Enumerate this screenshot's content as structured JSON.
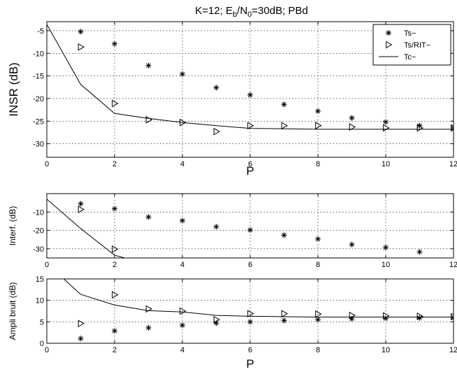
{
  "figure": {
    "title_parts": {
      "prefix": "K=12;  E",
      "sub1": "b",
      "mid": "/N",
      "sub2": "0",
      "suffix": "=30dB;  PBd"
    }
  },
  "chart_data": [
    {
      "type": "scatter",
      "name": "top",
      "title": "K=12;  Eb/N0=30dB;  PBd",
      "xlabel": "P",
      "ylabel": "INSR (dB)",
      "xlim": [
        0,
        12
      ],
      "ylim": [
        -33,
        -3
      ],
      "xticks": [
        0,
        2,
        4,
        6,
        8,
        10,
        12
      ],
      "yticks": [
        -5,
        -10,
        -15,
        -20,
        -25,
        -30
      ],
      "grid": true,
      "legend": {
        "placement": "top-right",
        "entries": [
          "Ts−",
          "Ts/RIT−",
          "Tc−"
        ]
      },
      "series": [
        {
          "name": "Ts−",
          "marker": "star",
          "x": [
            1,
            2,
            3,
            4,
            5,
            6,
            7,
            8,
            9,
            10,
            11,
            12
          ],
          "y": [
            -5.2,
            -7.9,
            -12.7,
            -14.6,
            -17.6,
            -19.2,
            -21.3,
            -22.8,
            -24.3,
            -25.2,
            -26.0,
            -26.5
          ]
        },
        {
          "name": "Ts/RIT−",
          "marker": "triangle-right",
          "x": [
            1,
            2,
            3,
            4,
            5,
            6,
            7,
            8,
            9,
            10,
            11,
            12
          ],
          "y": [
            -8.6,
            -21.1,
            -24.7,
            -25.3,
            -27.3,
            -26.0,
            -26.0,
            -26.0,
            -26.3,
            -26.5,
            -26.5,
            -26.5
          ]
        },
        {
          "name": "Tc−",
          "marker": "line",
          "x": [
            0,
            1,
            2,
            3,
            4,
            5,
            6,
            7,
            8,
            9,
            10,
            11,
            12
          ],
          "y": [
            -3.6,
            -16.9,
            -23.3,
            -24.4,
            -25.3,
            -26.0,
            -26.6,
            -26.7,
            -26.8,
            -26.8,
            -26.8,
            -26.8,
            -26.8
          ]
        }
      ]
    },
    {
      "type": "scatter",
      "name": "middle",
      "xlabel": "",
      "ylabel": "Interf. (dB)",
      "xlim": [
        0,
        12
      ],
      "ylim": [
        -35,
        0
      ],
      "xticks": [
        0,
        2,
        4,
        6,
        8,
        10,
        12
      ],
      "yticks": [
        -10,
        -20,
        -30
      ],
      "grid": true,
      "series": [
        {
          "name": "Ts−",
          "marker": "star",
          "x": [
            1,
            2,
            3,
            4,
            5,
            6,
            7,
            8,
            9,
            10,
            11
          ],
          "y": [
            -5.5,
            -8.2,
            -12.7,
            -14.7,
            -18.0,
            -19.8,
            -22.6,
            -24.7,
            -27.7,
            -29.3,
            -31.7
          ]
        },
        {
          "name": "Ts/RIT−",
          "marker": "triangle-right",
          "x": [
            1,
            2
          ],
          "y": [
            -8.6,
            -30.2
          ]
        },
        {
          "name": "Tc−",
          "marker": "line",
          "x": [
            0,
            1,
            2,
            2.3
          ],
          "y": [
            -3.0,
            -19.0,
            -33.5,
            -35.0
          ]
        }
      ]
    },
    {
      "type": "scatter",
      "name": "bottom",
      "xlabel": "P",
      "ylabel": "Ampli bruit (dB)",
      "xlim": [
        0,
        12
      ],
      "ylim": [
        0,
        15
      ],
      "xticks": [
        0,
        2,
        4,
        6,
        8,
        10,
        12
      ],
      "yticks": [
        0,
        5,
        10,
        15
      ],
      "grid": true,
      "series": [
        {
          "name": "Ts−",
          "marker": "star",
          "x": [
            1,
            2,
            3,
            4,
            5,
            6,
            7,
            8,
            9,
            10,
            11,
            12
          ],
          "y": [
            1.1,
            2.9,
            3.6,
            4.2,
            4.7,
            5.0,
            5.3,
            5.5,
            5.7,
            5.8,
            5.9,
            6.0
          ]
        },
        {
          "name": "Ts/RIT−",
          "marker": "triangle-right",
          "x": [
            1,
            2,
            3,
            4,
            5,
            6,
            7,
            8,
            9,
            10,
            11,
            12
          ],
          "y": [
            4.6,
            11.3,
            8.0,
            7.5,
            5.5,
            6.9,
            6.9,
            6.8,
            6.5,
            6.4,
            6.3,
            6.2
          ]
        },
        {
          "name": "Tc−",
          "marker": "line",
          "x": [
            0.5,
            1,
            2,
            3,
            4,
            5,
            6,
            7,
            8,
            9,
            10,
            11,
            12
          ],
          "y": [
            15.0,
            11.4,
            8.9,
            7.6,
            7.3,
            6.5,
            6.3,
            6.2,
            6.1,
            6.1,
            6.1,
            6.1,
            6.1
          ]
        }
      ]
    }
  ]
}
